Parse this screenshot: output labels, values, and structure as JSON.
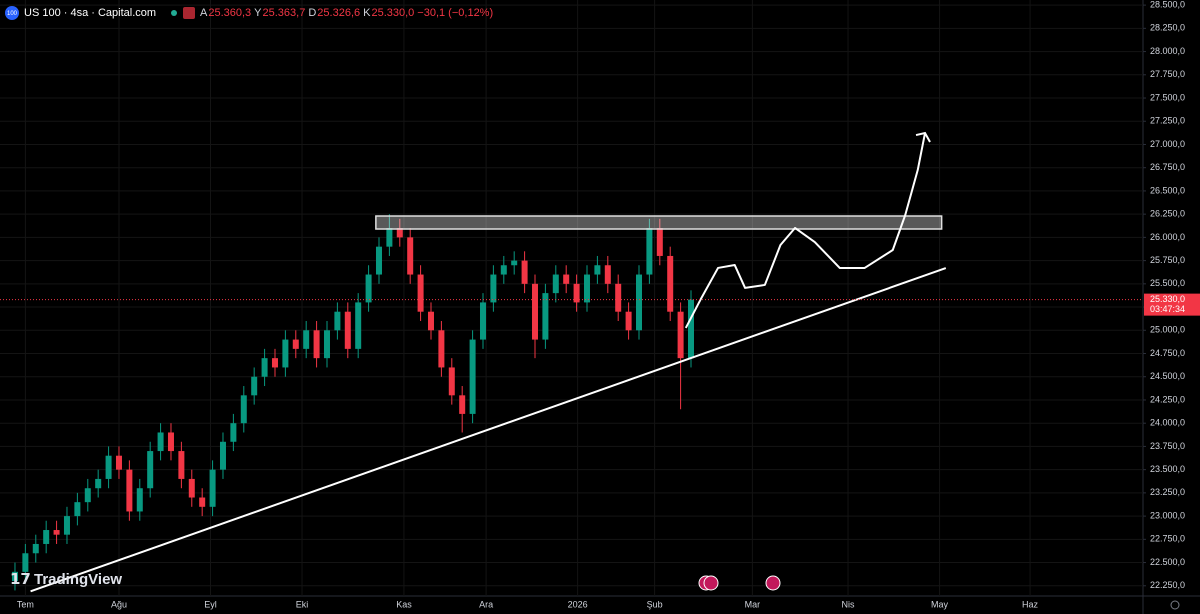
{
  "chart_data": {
    "type": "candlestick",
    "symbol_icon": "100",
    "title": "US 100 · 4sa · Capital.com",
    "ohlc_header": [
      {
        "key": "A",
        "value": "25.360,3"
      },
      {
        "key": "Y",
        "value": "25.363,7"
      },
      {
        "key": "D",
        "value": "25.326,6"
      },
      {
        "key": "K",
        "value": "25.330,0"
      }
    ],
    "change": "−30,1 (−0,12%)",
    "watermark": "TradingView",
    "up_color": "#089981",
    "down_color": "#f23645",
    "xlim": [
      -1.44,
      108.46
    ],
    "xticks": [
      {
        "value": 1,
        "label": "Tem"
      },
      {
        "value": 10,
        "label": "Ağu"
      },
      {
        "value": 18.8,
        "label": "Eyl"
      },
      {
        "value": 27.6,
        "label": "Eki"
      },
      {
        "value": 37.4,
        "label": "Kas"
      },
      {
        "value": 45.3,
        "label": "Ara"
      },
      {
        "value": 54.1,
        "label": "2026"
      },
      {
        "value": 61.5,
        "label": "Şub"
      },
      {
        "value": 70.9,
        "label": "Mar"
      },
      {
        "value": 80.1,
        "label": "Nis"
      },
      {
        "value": 88.9,
        "label": "May"
      },
      {
        "value": 97.6,
        "label": "Haz"
      }
    ],
    "ylim": [
      22140,
      28555
    ],
    "yticks": [
      {
        "value": 22250,
        "label": "22.250,0"
      },
      {
        "value": 22500,
        "label": "22.500,0"
      },
      {
        "value": 22750,
        "label": "22.750,0"
      },
      {
        "value": 23000,
        "label": "23.000,0"
      },
      {
        "value": 23250,
        "label": "23.250,0"
      },
      {
        "value": 23500,
        "label": "23.500,0"
      },
      {
        "value": 23750,
        "label": "23.750,0"
      },
      {
        "value": 24000,
        "label": "24.000,0"
      },
      {
        "value": 24250,
        "label": "24.250,0"
      },
      {
        "value": 24500,
        "label": "24.500,0"
      },
      {
        "value": 24750,
        "label": "24.750,0"
      },
      {
        "value": 25000,
        "label": "25.000,0"
      },
      {
        "value": 25250,
        "label": "25.250,0"
      },
      {
        "value": 25500,
        "label": "25.500,0"
      },
      {
        "value": 25750,
        "label": "25.750,0"
      },
      {
        "value": 26000,
        "label": "26.000,0"
      },
      {
        "value": 26250,
        "label": "26.250,0"
      },
      {
        "value": 26500,
        "label": "26.500,0"
      },
      {
        "value": 26750,
        "label": "26.750,0"
      },
      {
        "value": 27000,
        "label": "27.000,0"
      },
      {
        "value": 27250,
        "label": "27.250,0"
      },
      {
        "value": 27500,
        "label": "27.500,0"
      },
      {
        "value": 27750,
        "label": "27.750,0"
      },
      {
        "value": 28000,
        "label": "28.000,0"
      },
      {
        "value": 28250,
        "label": "28.250,0"
      },
      {
        "value": 28500,
        "label": "28.500,0"
      }
    ],
    "grid": true,
    "open": [
      22300,
      22400,
      22600,
      22700,
      22850,
      22800,
      23000,
      23150,
      23300,
      23400,
      23650,
      23500,
      23050,
      23300,
      23700,
      23900,
      23700,
      23400,
      23200,
      23100,
      23500,
      23800,
      24000,
      24300,
      24500,
      24700,
      24600,
      24900,
      24800,
      25000,
      24700,
      25000,
      25200,
      24800,
      25300,
      25600,
      25900,
      26100,
      26000,
      25600,
      25200,
      25000,
      24600,
      24300,
      24100,
      24900,
      25300,
      25600,
      25700,
      25750,
      25500,
      24900,
      25400,
      25600,
      25500,
      25300,
      25600,
      25700,
      25500,
      25200,
      25000,
      25600,
      26100,
      25800,
      25200,
      24700
    ],
    "high": [
      22500,
      22700,
      22800,
      22950,
      22950,
      23100,
      23250,
      23400,
      23500,
      23750,
      23750,
      23600,
      23400,
      23800,
      24000,
      24000,
      23800,
      23500,
      23300,
      23600,
      23900,
      24100,
      24400,
      24600,
      24800,
      24800,
      25000,
      25000,
      25100,
      25100,
      25100,
      25300,
      25300,
      25400,
      25700,
      26000,
      26250,
      26200,
      26100,
      25700,
      25300,
      25100,
      24700,
      24400,
      25000,
      25400,
      25700,
      25800,
      25850,
      25850,
      25600,
      25500,
      25700,
      25700,
      25600,
      25700,
      25800,
      25800,
      25600,
      25300,
      25700,
      26200,
      26200,
      25900,
      25300,
      25430
    ],
    "low": [
      22200,
      22300,
      22500,
      22600,
      22700,
      22700,
      22900,
      23050,
      23200,
      23300,
      23400,
      22950,
      22950,
      23200,
      23600,
      23600,
      23300,
      23100,
      23000,
      23000,
      23400,
      23700,
      23900,
      24200,
      24400,
      24500,
      24500,
      24700,
      24700,
      24600,
      24600,
      24900,
      24700,
      24700,
      25200,
      25500,
      25800,
      25900,
      25500,
      25100,
      24900,
      24500,
      24200,
      23900,
      24000,
      24800,
      25200,
      25500,
      25600,
      25400,
      24700,
      24800,
      25300,
      25400,
      25200,
      25200,
      25500,
      25400,
      25100,
      24900,
      24900,
      25500,
      25700,
      25100,
      24150,
      24600
    ],
    "close": [
      22400,
      22600,
      22700,
      22850,
      22800,
      23000,
      23150,
      23300,
      23400,
      23650,
      23500,
      23050,
      23300,
      23700,
      23900,
      23700,
      23400,
      23200,
      23100,
      23500,
      23800,
      24000,
      24300,
      24500,
      24700,
      24600,
      24900,
      24800,
      25000,
      24700,
      25000,
      25200,
      24800,
      25300,
      25600,
      25900,
      26100,
      26000,
      25600,
      25200,
      25000,
      24600,
      24300,
      24100,
      24900,
      25300,
      25600,
      25700,
      25750,
      25500,
      24900,
      25400,
      25600,
      25500,
      25300,
      25600,
      25700,
      25500,
      25200,
      25000,
      25600,
      26100,
      25800,
      25200,
      24700,
      25330
    ],
    "last_price": {
      "value": 25330,
      "label": "25.330,0"
    },
    "countdown": "03:47:34",
    "zone": {
      "x": [
        34.7,
        89.1
      ],
      "y": [
        26090,
        26230
      ]
    },
    "trendline": {
      "x": [
        1.5,
        89.5
      ],
      "y": [
        22190,
        25670
      ]
    },
    "projection": {
      "x": [
        64.5,
        65.9,
        67.6,
        69.2,
        70.2,
        72.1,
        73.6,
        75.0,
        76.9,
        79.3,
        81.7,
        84.4,
        85.6,
        86.8,
        87.5
      ],
      "y": [
        25025,
        25327,
        25671,
        25703,
        25456,
        25488,
        25918,
        26101,
        25950,
        25671,
        25671,
        25864,
        26241,
        26725,
        27123
      ]
    }
  }
}
